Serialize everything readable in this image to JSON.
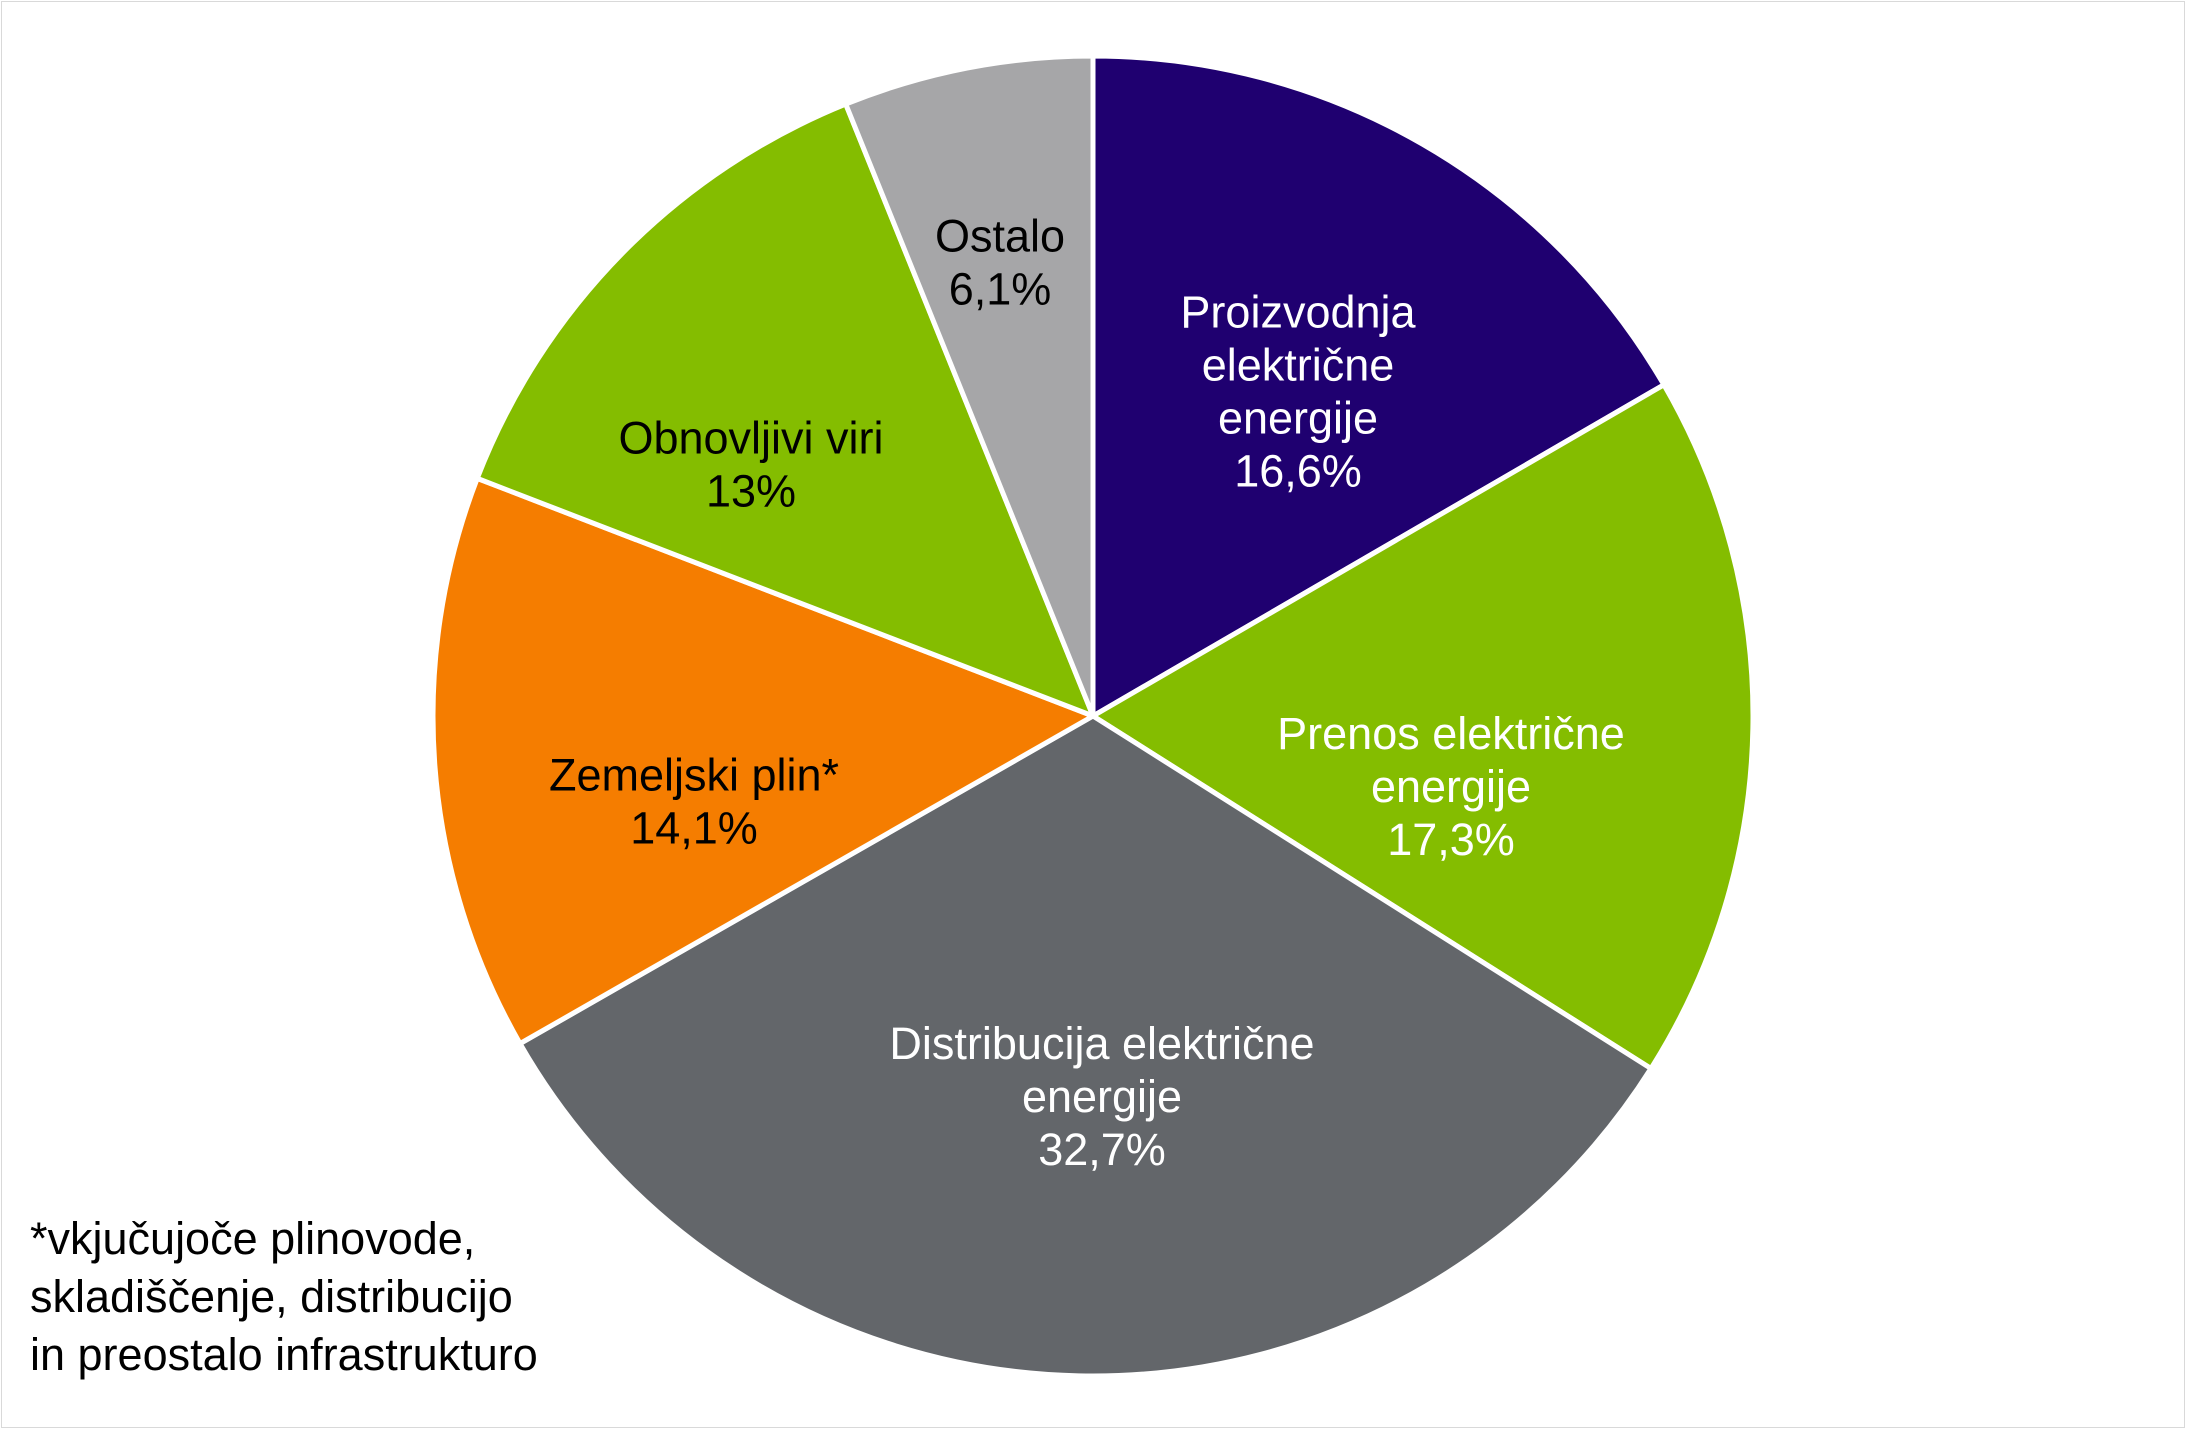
{
  "chart_data": {
    "type": "pie",
    "title": "",
    "start_angle_deg": 0,
    "direction": "clockwise",
    "slices": [
      {
        "label_lines": [
          "Proizvodnja",
          "električne",
          "energije"
        ],
        "value_label": "16,6%",
        "value": 16.6,
        "color": "#1f0070",
        "text_color": "#ffffff"
      },
      {
        "label_lines": [
          "Prenos električne",
          "energije"
        ],
        "value_label": "17,3%",
        "value": 17.3,
        "color": "#84bd00",
        "text_color": "#ffffff"
      },
      {
        "label_lines": [
          "Distribucija električne",
          "energije"
        ],
        "value_label": "32,7%",
        "value": 32.7,
        "color": "#63666a",
        "text_color": "#ffffff"
      },
      {
        "label_lines": [
          "Zemeljski plin*"
        ],
        "value_label": "14,1%",
        "value": 14.1,
        "color": "#f57d00",
        "text_color": "#000000"
      },
      {
        "label_lines": [
          "Obnovljivi viri"
        ],
        "value_label": "13%",
        "value": 13.0,
        "color": "#84bd00",
        "text_color": "#000000"
      },
      {
        "label_lines": [
          "Ostalo"
        ],
        "value_label": "6,1%",
        "value": 6.1,
        "color": "#a6a6a8",
        "text_color": "#000000"
      }
    ],
    "legend": "none",
    "footnote_lines": [
      "*vkjučujoče plinovode,",
      "skladiščenje, distribucijo",
      "in preostalo infrastrukturo"
    ]
  }
}
